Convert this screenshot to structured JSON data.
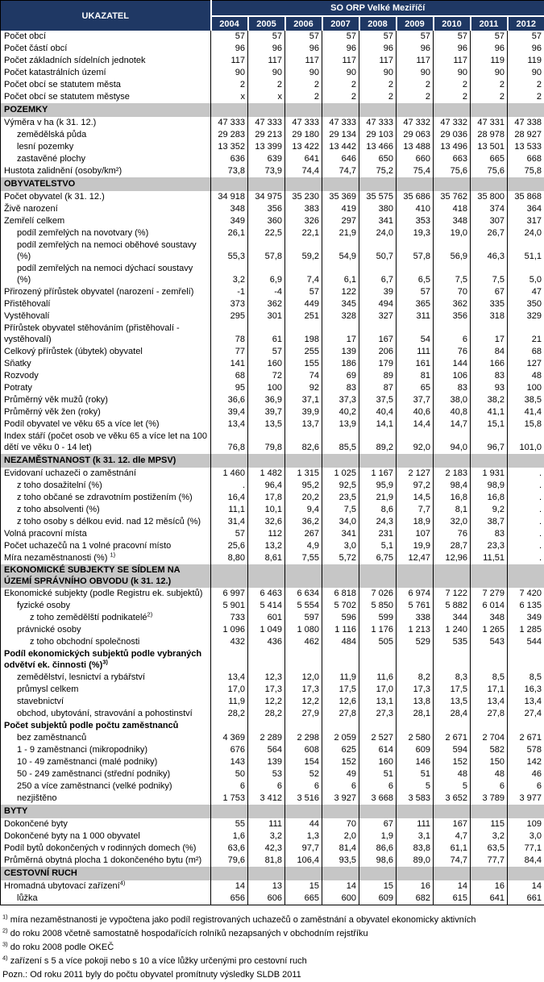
{
  "colors": {
    "header_bg": "#1F3864",
    "header_text": "#FFFFFF",
    "section_band_bg": "#C6C6C6",
    "grid_line": "#000000",
    "body_bg": "#FFFFFF"
  },
  "header": {
    "col_label": "UKAZATEL",
    "group_label": "SO ORP Velké Meziříčí",
    "years": [
      "2004",
      "2005",
      "2006",
      "2007",
      "2008",
      "2009",
      "2010",
      "2011",
      "2012"
    ]
  },
  "rows": [
    {
      "type": "data",
      "label": "Počet obcí",
      "indent": 0,
      "values": [
        "57",
        "57",
        "57",
        "57",
        "57",
        "57",
        "57",
        "57",
        "57"
      ]
    },
    {
      "type": "data",
      "label": "Počet částí obcí",
      "indent": 0,
      "values": [
        "96",
        "96",
        "96",
        "96",
        "96",
        "96",
        "96",
        "96",
        "96"
      ]
    },
    {
      "type": "data",
      "label": "Počet základních sídelních jednotek",
      "indent": 0,
      "values": [
        "117",
        "117",
        "117",
        "117",
        "117",
        "117",
        "117",
        "119",
        "119"
      ]
    },
    {
      "type": "data",
      "label": "Počet katastrálních území",
      "indent": 0,
      "values": [
        "90",
        "90",
        "90",
        "90",
        "90",
        "90",
        "90",
        "90",
        "90"
      ]
    },
    {
      "type": "data",
      "label": "Počet obcí se statutem města",
      "indent": 0,
      "values": [
        "2",
        "2",
        "2",
        "2",
        "2",
        "2",
        "2",
        "2",
        "2"
      ]
    },
    {
      "type": "data",
      "label": "Počet obcí se statutem městyse",
      "indent": 0,
      "values": [
        "x",
        "x",
        "2",
        "2",
        "2",
        "2",
        "2",
        "2",
        "2"
      ]
    },
    {
      "type": "section",
      "label": "POZEMKY"
    },
    {
      "type": "data",
      "label": "Výměra v ha (k 31. 12.)",
      "indent": 0,
      "values": [
        "47 333",
        "47 333",
        "47 333",
        "47 333",
        "47 333",
        "47 332",
        "47 332",
        "47 331",
        "47 338"
      ]
    },
    {
      "type": "data",
      "label": "zemědělská půda",
      "indent": 1,
      "values": [
        "29 283",
        "29 213",
        "29 180",
        "29 134",
        "29 103",
        "29 063",
        "29 036",
        "28 978",
        "28 927"
      ]
    },
    {
      "type": "data",
      "label": "lesní pozemky",
      "indent": 1,
      "values": [
        "13 352",
        "13 399",
        "13 422",
        "13 442",
        "13 466",
        "13 488",
        "13 496",
        "13 501",
        "13 533"
      ]
    },
    {
      "type": "data",
      "label": "zastavěné plochy",
      "indent": 1,
      "values": [
        "636",
        "639",
        "641",
        "646",
        "650",
        "660",
        "663",
        "665",
        "668"
      ]
    },
    {
      "type": "data",
      "label": "Hustota zalidnění (osoby/km²)",
      "indent": 0,
      "values": [
        "73,8",
        "73,9",
        "74,4",
        "74,7",
        "75,2",
        "75,4",
        "75,6",
        "75,6",
        "75,8"
      ]
    },
    {
      "type": "section",
      "label": "OBYVATELSTVO"
    },
    {
      "type": "data",
      "label": "Počet obyvatel (k 31. 12.)",
      "indent": 0,
      "values": [
        "34 918",
        "34 975",
        "35 230",
        "35 369",
        "35 575",
        "35 686",
        "35 762",
        "35 800",
        "35 868"
      ]
    },
    {
      "type": "data",
      "label": "Živě narození",
      "indent": 0,
      "values": [
        "348",
        "356",
        "383",
        "419",
        "380",
        "410",
        "418",
        "374",
        "364"
      ]
    },
    {
      "type": "data",
      "label": "Zemřelí celkem",
      "indent": 0,
      "values": [
        "349",
        "360",
        "326",
        "297",
        "341",
        "353",
        "348",
        "307",
        "317"
      ]
    },
    {
      "type": "data",
      "label": "podíl zemřelých na novotvary (%)",
      "indent": 1,
      "values": [
        "26,1",
        "22,5",
        "22,1",
        "21,9",
        "24,0",
        "19,3",
        "19,0",
        "26,7",
        "24,0"
      ]
    },
    {
      "type": "data",
      "label": "podíl zemřelých na nemoci oběhové soustavy (%)",
      "indent": 1,
      "values": [
        "55,3",
        "57,8",
        "59,2",
        "54,9",
        "50,7",
        "57,8",
        "56,9",
        "46,3",
        "51,1"
      ]
    },
    {
      "type": "data",
      "label": "podíl zemřelých na nemoci dýchací soustavy (%)",
      "indent": 1,
      "values": [
        "3,2",
        "6,9",
        "7,4",
        "6,1",
        "6,7",
        "6,5",
        "7,5",
        "7,5",
        "5,0"
      ]
    },
    {
      "type": "data",
      "label": "Přirozený přírůstek obyvatel (narození - zemřelí)",
      "indent": 0,
      "values": [
        "-1",
        "-4",
        "57",
        "122",
        "39",
        "57",
        "70",
        "67",
        "47"
      ]
    },
    {
      "type": "data",
      "label": "Přistěhovalí",
      "indent": 0,
      "values": [
        "373",
        "362",
        "449",
        "345",
        "494",
        "365",
        "362",
        "335",
        "350"
      ]
    },
    {
      "type": "data",
      "label": "Vystěhovalí",
      "indent": 0,
      "values": [
        "295",
        "301",
        "251",
        "328",
        "327",
        "311",
        "356",
        "318",
        "329"
      ]
    },
    {
      "type": "data",
      "label": "Přírůstek obyvatel stěhováním (přistěhovalí - vystěhovalí)",
      "indent": 0,
      "values": [
        "78",
        "61",
        "198",
        "17",
        "167",
        "54",
        "6",
        "17",
        "21"
      ]
    },
    {
      "type": "data",
      "label": "Celkový přírůstek (úbytek) obyvatel",
      "indent": 0,
      "values": [
        "77",
        "57",
        "255",
        "139",
        "206",
        "111",
        "76",
        "84",
        "68"
      ]
    },
    {
      "type": "data",
      "label": "Sňatky",
      "indent": 0,
      "values": [
        "141",
        "160",
        "155",
        "186",
        "179",
        "161",
        "144",
        "166",
        "127"
      ]
    },
    {
      "type": "data",
      "label": "Rozvody",
      "indent": 0,
      "values": [
        "68",
        "72",
        "74",
        "69",
        "89",
        "81",
        "106",
        "83",
        "48"
      ]
    },
    {
      "type": "data",
      "label": "Potraty",
      "indent": 0,
      "values": [
        "95",
        "100",
        "92",
        "83",
        "87",
        "65",
        "83",
        "93",
        "100"
      ]
    },
    {
      "type": "data",
      "label": "Průměrný věk mužů (roky)",
      "indent": 0,
      "values": [
        "36,6",
        "36,9",
        "37,1",
        "37,3",
        "37,5",
        "37,7",
        "38,0",
        "38,2",
        "38,5"
      ]
    },
    {
      "type": "data",
      "label": "Průměrný věk žen (roky)",
      "indent": 0,
      "values": [
        "39,4",
        "39,7",
        "39,9",
        "40,2",
        "40,4",
        "40,6",
        "40,8",
        "41,1",
        "41,4"
      ]
    },
    {
      "type": "data",
      "label": "Podíl obyvatel ve věku 65 a více let (%)",
      "indent": 0,
      "values": [
        "13,4",
        "13,5",
        "13,7",
        "13,9",
        "14,1",
        "14,4",
        "14,7",
        "15,1",
        "15,8"
      ]
    },
    {
      "type": "data",
      "label": "Index stáří (počet osob ve věku 65 a více let na 100 dětí ve věku 0 - 14 let)",
      "indent": 0,
      "values": [
        "76,8",
        "79,8",
        "82,6",
        "85,5",
        "89,2",
        "92,0",
        "94,0",
        "96,7",
        "101,0"
      ]
    },
    {
      "type": "section",
      "label": "NEZAMĚSTNANOST (k 31. 12. dle MPSV)"
    },
    {
      "type": "data",
      "label": "Evidovaní uchazeči o zaměstnání",
      "indent": 0,
      "values": [
        "1 460",
        "1 482",
        "1 315",
        "1 025",
        "1 167",
        "2 127",
        "2 183",
        "1 931",
        "."
      ]
    },
    {
      "type": "data",
      "label": "z toho dosažitelní (%)",
      "indent": 1,
      "values": [
        ".",
        "96,4",
        "95,2",
        "92,5",
        "95,9",
        "97,2",
        "98,4",
        "98,9",
        "."
      ]
    },
    {
      "type": "data",
      "label": "z toho občané se zdravotním postižením (%)",
      "indent": 1,
      "values": [
        "16,4",
        "17,8",
        "20,2",
        "23,5",
        "21,9",
        "14,5",
        "16,8",
        "16,8",
        "."
      ]
    },
    {
      "type": "data",
      "label": "z toho absolventi (%)",
      "indent": 1,
      "values": [
        "11,1",
        "10,1",
        "9,4",
        "7,5",
        "8,6",
        "7,7",
        "8,1",
        "9,2",
        "."
      ]
    },
    {
      "type": "data",
      "label": "z toho osoby s délkou evid. nad 12 měsíců (%)",
      "indent": 1,
      "values": [
        "31,4",
        "32,6",
        "36,2",
        "34,0",
        "24,3",
        "18,9",
        "32,0",
        "38,7",
        "."
      ]
    },
    {
      "type": "data",
      "label": "Volná pracovní místa",
      "indent": 0,
      "values": [
        "57",
        "112",
        "267",
        "341",
        "231",
        "107",
        "76",
        "83",
        "."
      ]
    },
    {
      "type": "data",
      "label": "Počet uchazečů na 1 volné pracovní místo",
      "indent": 0,
      "values": [
        "25,6",
        "13,2",
        "4,9",
        "3,0",
        "5,1",
        "19,9",
        "28,7",
        "23,3",
        "."
      ]
    },
    {
      "type": "data",
      "label": "Míra nezaměstnanosti (%) ",
      "sup": "1)",
      "indent": 0,
      "values": [
        "8,80",
        "8,61",
        "7,55",
        "5,72",
        "6,75",
        "12,47",
        "12,96",
        "11,51",
        "."
      ]
    },
    {
      "type": "section",
      "label": "EKONOMICKÉ SUBJEKTY SE SÍDLEM NA ÚZEMÍ SPRÁVNÍHO OBVODU (k 31. 12.)"
    },
    {
      "type": "data",
      "label": "Ekonomické subjekty (podle Registru ek. subjektů)",
      "indent": 0,
      "values": [
        "6 997",
        "6 463",
        "6 634",
        "6 818",
        "7 026",
        "6 974",
        "7 122",
        "7 279",
        "7 420"
      ]
    },
    {
      "type": "data",
      "label": "fyzické osoby",
      "indent": 1,
      "values": [
        "5 901",
        "5 414",
        "5 554",
        "5 702",
        "5 850",
        "5 761",
        "5 882",
        "6 014",
        "6 135"
      ]
    },
    {
      "type": "data",
      "label": "z toho zemědělští podnikatelé",
      "sup": "2)",
      "indent": 2,
      "values": [
        "733",
        "601",
        "597",
        "596",
        "599",
        "338",
        "344",
        "348",
        "349"
      ]
    },
    {
      "type": "data",
      "label": "právnické osoby",
      "indent": 1,
      "values": [
        "1 096",
        "1 049",
        "1 080",
        "1 116",
        "1 176",
        "1 213",
        "1 240",
        "1 265",
        "1 285"
      ]
    },
    {
      "type": "data",
      "label": "z toho obchodní společnosti",
      "indent": 2,
      "values": [
        "432",
        "436",
        "462",
        "484",
        "505",
        "529",
        "535",
        "543",
        "544"
      ]
    },
    {
      "type": "data",
      "label": "Podíl ekonomických subjektů podle vybraných odvětví ek. činnosti (%)",
      "sup": "3)",
      "indent": 0,
      "bold": true,
      "values": [
        "",
        "",
        "",
        "",
        "",
        "",
        "",
        "",
        ""
      ]
    },
    {
      "type": "data",
      "label": "zemědělství, lesnictví a rybářství",
      "indent": 1,
      "values": [
        "13,4",
        "12,3",
        "12,0",
        "11,9",
        "11,6",
        "8,2",
        "8,3",
        "8,5",
        "8,5"
      ]
    },
    {
      "type": "data",
      "label": "průmysl celkem",
      "indent": 1,
      "values": [
        "17,0",
        "17,3",
        "17,3",
        "17,5",
        "17,0",
        "17,3",
        "17,5",
        "17,1",
        "16,3"
      ]
    },
    {
      "type": "data",
      "label": "stavebnictví",
      "indent": 1,
      "values": [
        "11,9",
        "12,2",
        "12,2",
        "12,6",
        "13,1",
        "13,8",
        "13,5",
        "13,4",
        "13,4"
      ]
    },
    {
      "type": "data",
      "label": "obchod, ubytování, stravování a pohostinství",
      "indent": 1,
      "values": [
        "28,2",
        "28,2",
        "27,9",
        "27,8",
        "27,3",
        "28,1",
        "28,4",
        "27,8",
        "27,4"
      ]
    },
    {
      "type": "data",
      "label": "Počet subjektů  podle počtu zaměstnanců",
      "indent": 0,
      "bold": true,
      "values": [
        "",
        "",
        "",
        "",
        "",
        "",
        "",
        "",
        ""
      ]
    },
    {
      "type": "data",
      "label": "bez zaměstnanců",
      "indent": 1,
      "values": [
        "4 369",
        "2 289",
        "2 298",
        "2 059",
        "2 527",
        "2 580",
        "2 671",
        "2 704",
        "2 671"
      ]
    },
    {
      "type": "data",
      "label": "1 - 9 zaměstnanci (mikropodniky)",
      "indent": 1,
      "values": [
        "676",
        "564",
        "608",
        "625",
        "614",
        "609",
        "594",
        "582",
        "578"
      ]
    },
    {
      "type": "data",
      "label": "10 - 49 zaměstnanci (malé podniky)",
      "indent": 1,
      "values": [
        "143",
        "139",
        "154",
        "152",
        "160",
        "146",
        "152",
        "150",
        "142"
      ]
    },
    {
      "type": "data",
      "label": "50 - 249 zaměstnanci (střední podniky)",
      "indent": 1,
      "values": [
        "50",
        "53",
        "52",
        "49",
        "51",
        "51",
        "48",
        "48",
        "46"
      ]
    },
    {
      "type": "data",
      "label": "250 a více zaměstnanci (velké podniky)",
      "indent": 1,
      "values": [
        "6",
        "6",
        "6",
        "6",
        "6",
        "5",
        "5",
        "6",
        "6"
      ]
    },
    {
      "type": "data",
      "label": "nezjištěno",
      "indent": 1,
      "values": [
        "1 753",
        "3 412",
        "3 516",
        "3 927",
        "3 668",
        "3 583",
        "3 652",
        "3 789",
        "3 977"
      ]
    },
    {
      "type": "section",
      "label": "BYTY"
    },
    {
      "type": "data",
      "label": "Dokončené byty",
      "indent": 0,
      "values": [
        "55",
        "111",
        "44",
        "70",
        "67",
        "111",
        "167",
        "115",
        "109"
      ]
    },
    {
      "type": "data",
      "label": "Dokončené byty na 1 000 obyvatel",
      "indent": 0,
      "values": [
        "1,6",
        "3,2",
        "1,3",
        "2,0",
        "1,9",
        "3,1",
        "4,7",
        "3,2",
        "3,0"
      ]
    },
    {
      "type": "data",
      "label": "Podíl bytů dokončených v rodinných domech (%)",
      "indent": 0,
      "values": [
        "63,6",
        "42,3",
        "97,7",
        "81,4",
        "86,6",
        "83,8",
        "61,1",
        "63,5",
        "77,1"
      ]
    },
    {
      "type": "data",
      "label": "Průměrná obytná plocha 1 dokončeného bytu (m²)",
      "indent": 0,
      "values": [
        "79,6",
        "81,8",
        "106,4",
        "93,5",
        "98,6",
        "89,0",
        "74,7",
        "77,7",
        "84,4"
      ]
    },
    {
      "type": "section",
      "label": "CESTOVNÍ RUCH"
    },
    {
      "type": "data",
      "label": "Hromadná ubytovací zařízení",
      "sup": "4)",
      "indent": 0,
      "values": [
        "14",
        "13",
        "15",
        "14",
        "15",
        "16",
        "14",
        "16",
        "14"
      ]
    },
    {
      "type": "data",
      "label": "lůžka",
      "indent": 1,
      "values": [
        "656",
        "606",
        "665",
        "600",
        "609",
        "682",
        "615",
        "641",
        "661"
      ]
    }
  ],
  "footnotes": [
    {
      "marker": "1)",
      "text": "míra nezaměstnanosti je vypočtena jako podíl registrovaných uchazečů o zaměstnání a obyvatel ekonomicky aktivních"
    },
    {
      "marker": "2)",
      "text": "do roku 2008 včetně samostatně hospodařících rolníků nezapsaných v obchodním rejstříku"
    },
    {
      "marker": "3)",
      "text": "do roku 2008 podle OKEČ"
    },
    {
      "marker": "4)",
      "text": "zařízení s 5 a více pokoji nebo s 10 a více lůžky určenými pro cestovní ruch"
    },
    {
      "marker": "",
      "text": "Pozn.: Od roku 2011 byly do počtu obyvatel promítnuty výsledky SLDB 2011"
    }
  ]
}
